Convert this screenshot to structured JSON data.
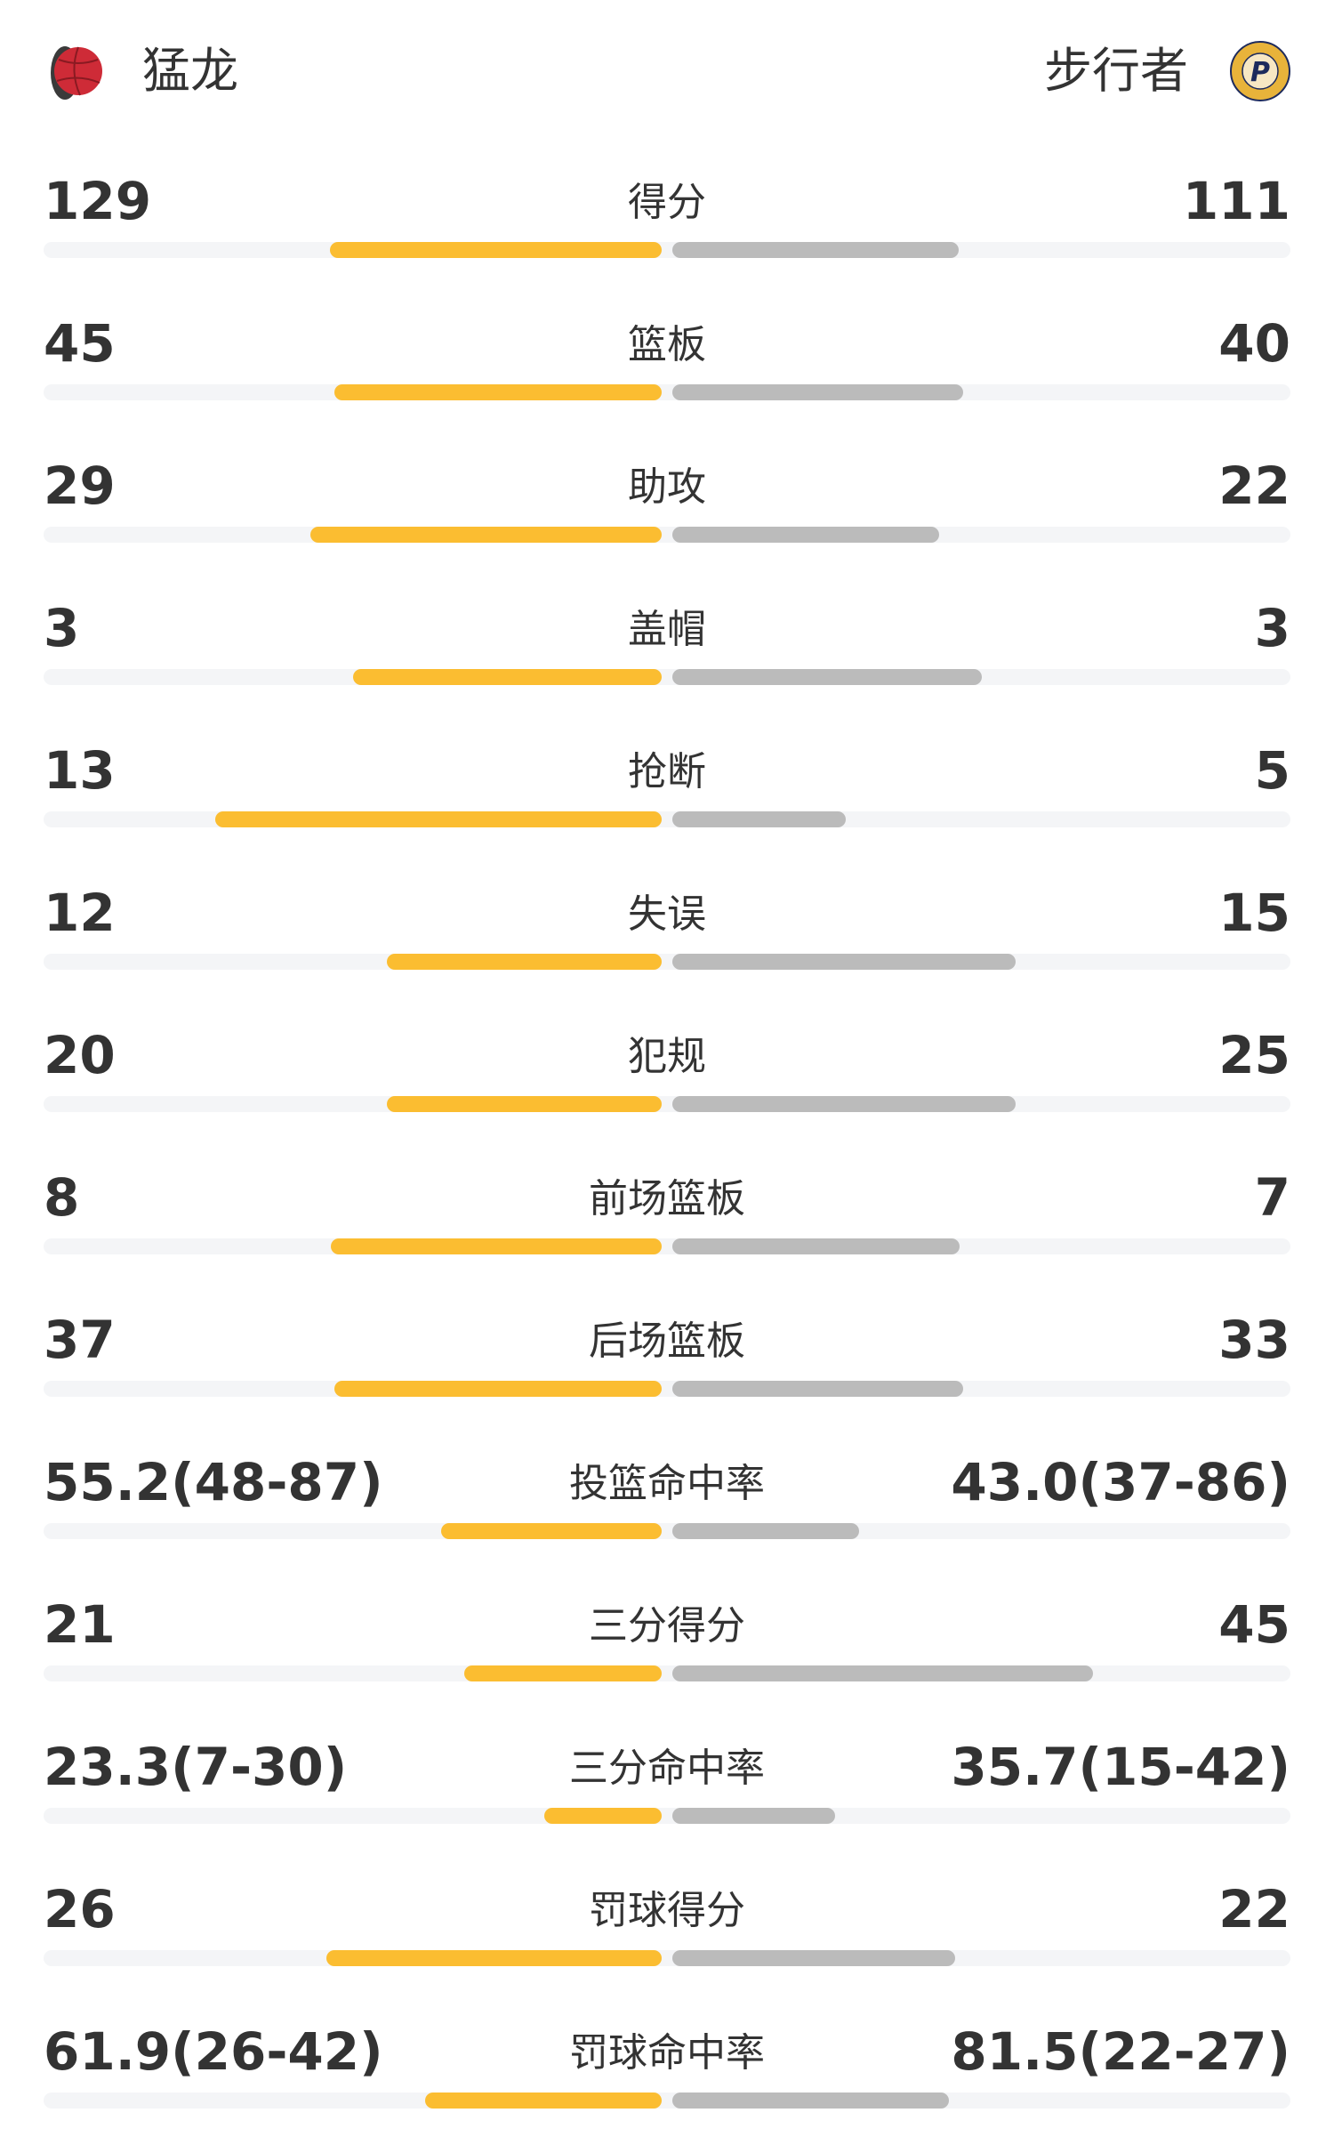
{
  "header": {
    "home_team": "猛龙",
    "away_team": "步行者",
    "home_logo": "raptors-logo",
    "away_logo": "pacers-logo"
  },
  "colors": {
    "home_bar": "#fbbd31",
    "away_bar": "#bbbbbb",
    "track": "#f4f5f7"
  },
  "stats": [
    {
      "label": "得分",
      "home": "129",
      "away": "111",
      "home_fill": 0.537,
      "away_fill": 0.463
    },
    {
      "label": "篮板",
      "home": "45",
      "away": "40",
      "home_fill": 0.529,
      "away_fill": 0.471
    },
    {
      "label": "助攻",
      "home": "29",
      "away": "22",
      "home_fill": 0.569,
      "away_fill": 0.431
    },
    {
      "label": "盖帽",
      "home": "3",
      "away": "3",
      "home_fill": 0.5,
      "away_fill": 0.5
    },
    {
      "label": "抢断",
      "home": "13",
      "away": "5",
      "home_fill": 0.722,
      "away_fill": 0.28
    },
    {
      "label": "失误",
      "home": "12",
      "away": "15",
      "home_fill": 0.445,
      "away_fill": 0.555
    },
    {
      "label": "犯规",
      "home": "20",
      "away": "25",
      "home_fill": 0.445,
      "away_fill": 0.555
    },
    {
      "label": "前场篮板",
      "home": "8",
      "away": "7",
      "home_fill": 0.535,
      "away_fill": 0.465
    },
    {
      "label": "后场篮板",
      "home": "37",
      "away": "33",
      "home_fill": 0.529,
      "away_fill": 0.471
    },
    {
      "label": "投篮命中率",
      "home": "55.2(48-87)",
      "away": "43.0(37-86)",
      "home_fill": 0.357,
      "away_fill": 0.302
    },
    {
      "label": "三分得分",
      "home": "21",
      "away": "45",
      "home_fill": 0.32,
      "away_fill": 0.68
    },
    {
      "label": "三分命中率",
      "home": "23.3(7-30)",
      "away": "35.7(15-42)",
      "home_fill": 0.19,
      "away_fill": 0.264
    },
    {
      "label": "罚球得分",
      "home": "26",
      "away": "22",
      "home_fill": 0.542,
      "away_fill": 0.458
    },
    {
      "label": "罚球命中率",
      "home": "61.9(26-42)",
      "away": "81.5(22-27)",
      "home_fill": 0.383,
      "away_fill": 0.447
    }
  ]
}
